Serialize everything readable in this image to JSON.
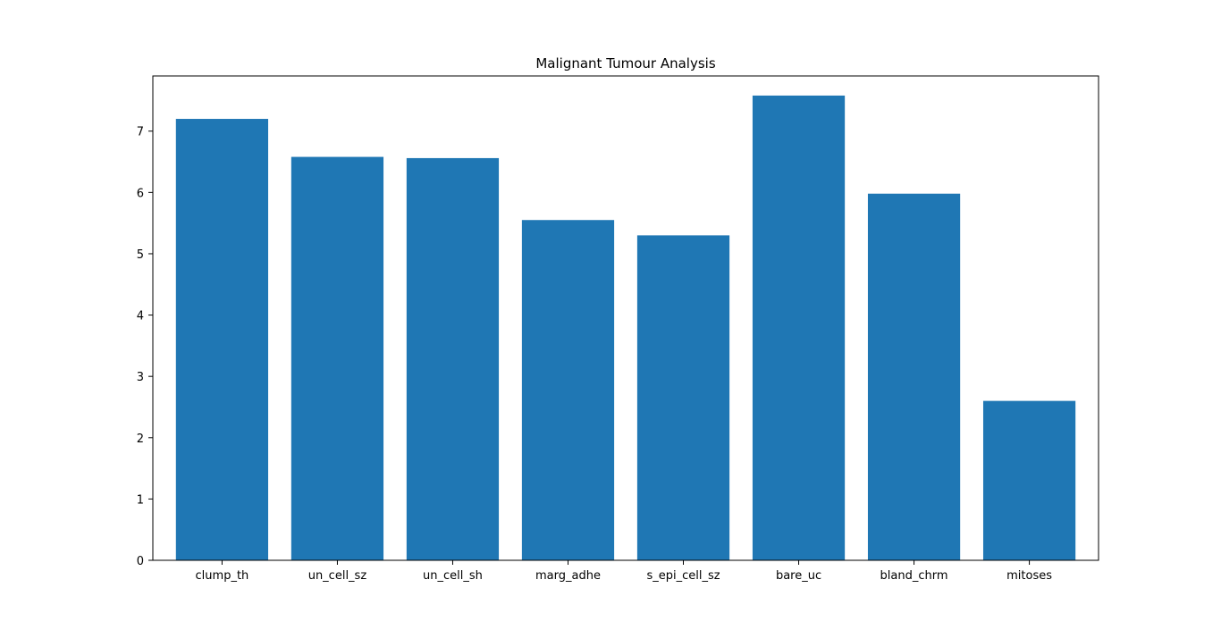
{
  "chart_data": {
    "type": "bar",
    "title": "Malignant Tumour Analysis",
    "xlabel": "",
    "ylabel": "",
    "categories": [
      "clump_th",
      "un_cell_sz",
      "un_cell_sh",
      "marg_adhe",
      "s_epi_cell_sz",
      "bare_uc",
      "bland_chrm",
      "mitoses"
    ],
    "values": [
      7.2,
      6.58,
      6.56,
      5.55,
      5.3,
      7.58,
      5.98,
      2.6
    ],
    "ylim": [
      0,
      7.9
    ],
    "yticks": [
      0,
      1,
      2,
      3,
      4,
      5,
      6,
      7
    ],
    "grid": false,
    "legend": "none",
    "bar_color": "#1f77b4"
  }
}
